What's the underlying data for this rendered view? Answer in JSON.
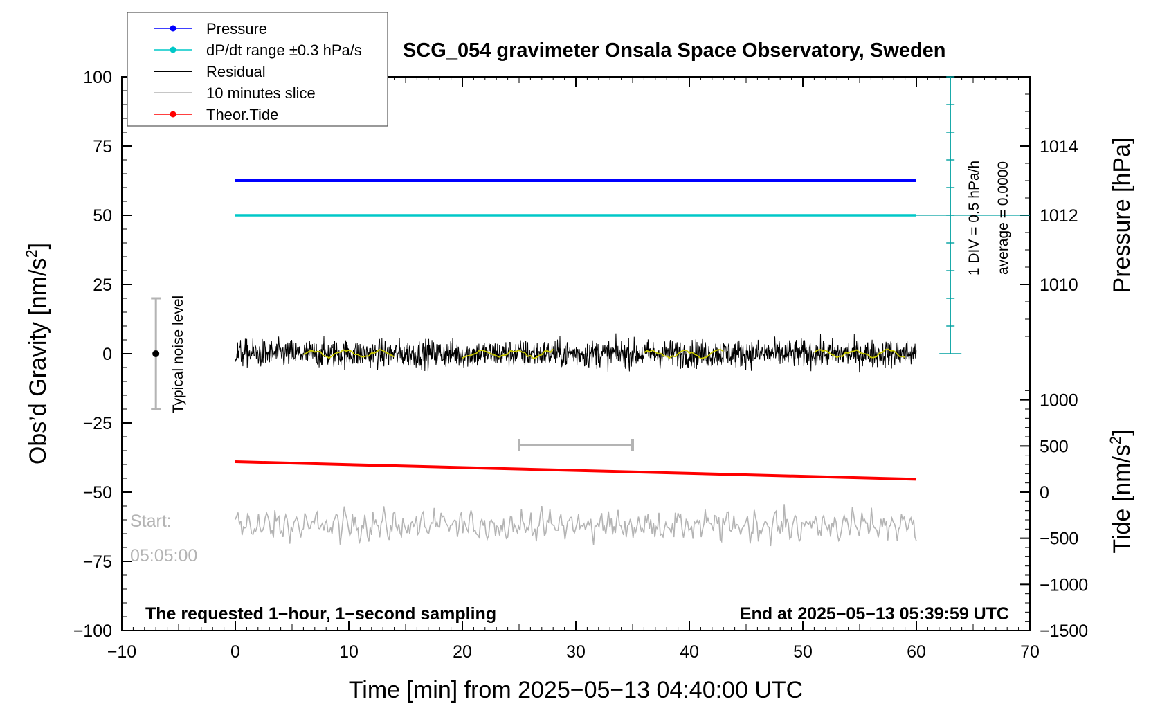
{
  "chart_data": {
    "type": "line",
    "title": "SCG_054 gravimeter Onsala Space Observatory, Sweden",
    "xlabel": "Time [min] from 2025−05−13 04:40:00 UTC",
    "xlim": [
      -10,
      70
    ],
    "x_ticks": [
      -10,
      0,
      10,
      20,
      30,
      40,
      50,
      60,
      70
    ],
    "x_tick_labels": [
      "−10",
      "0",
      "10",
      "20",
      "30",
      "40",
      "50",
      "60",
      "70"
    ],
    "y_left": {
      "label_main": "Obs’d Gravity [nm/s",
      "label_sup": "2",
      "label_end": "]",
      "lim": [
        -100,
        100
      ],
      "ticks": [
        -100,
        -75,
        -50,
        -25,
        0,
        25,
        50,
        75,
        100
      ],
      "tick_labels": [
        "−100",
        "−75",
        "−50",
        "−25",
        "0",
        "25",
        "50",
        "75",
        "100"
      ]
    },
    "y_right_pressure": {
      "label": "Pressure [hPa]",
      "ticks": [
        1010,
        1012,
        1014
      ],
      "tick_labels": [
        "1010",
        "1012",
        "1014"
      ],
      "value_at_left_0": 1008,
      "value_at_left_100": 1016
    },
    "y_right_tide": {
      "label_main": "Tide [nm/s",
      "label_sup": "2",
      "label_end": "]",
      "ticks": [
        -1500,
        -1000,
        -500,
        0,
        500,
        1000
      ],
      "tick_labels": [
        "−1500",
        "−1000",
        "−500",
        "0",
        "500",
        "1000"
      ],
      "value_at_left_minus100": -1500,
      "value_at_left_minus50": 0
    },
    "legend": {
      "placement": "top-left",
      "entries": [
        {
          "label": "Pressure",
          "color": "#0000ff",
          "marker": true
        },
        {
          "label": "dP/dt range ±0.3 hPa/s",
          "color": "#00c8c8",
          "marker": true
        },
        {
          "label": "Residual",
          "color": "#000000",
          "marker": false
        },
        {
          "label": "10 minutes slice",
          "color": "#b4b4b4",
          "marker": false
        },
        {
          "label": "Theor.Tide",
          "color": "#ff0000",
          "marker": true
        }
      ]
    },
    "series": [
      {
        "name": "Pressure",
        "color": "#0000ff",
        "x": [
          0,
          60
        ],
        "y_hpa": [
          1013,
          1013
        ]
      },
      {
        "name": "dP/dt range ±0.3 hPa/s",
        "color": "#00c8c8",
        "x": [
          0,
          60
        ],
        "y_hpa": [
          1012,
          1012
        ]
      },
      {
        "name": "Residual",
        "color": "#000000",
        "x_range": [
          0,
          60
        ],
        "mean": 0,
        "amplitude": 6
      },
      {
        "name": "10 minutes slice",
        "color": "#b4b4b4",
        "x_range": [
          0,
          60
        ],
        "mean": -62,
        "amplitude": 5
      },
      {
        "name": "Theor.Tide",
        "color": "#ff0000",
        "x": [
          0,
          60
        ],
        "y_tide": [
          330,
          140
        ]
      }
    ],
    "dpdt_scale": {
      "x": 63,
      "div_label": "1 DIV = 0.5 hPa/h",
      "avg_label": "average = 0.0000"
    },
    "slice_marker": {
      "x": [
        25,
        35
      ],
      "y": -33
    },
    "noise_bar": {
      "x": -7,
      "y": 0,
      "range": [
        -20,
        20
      ],
      "label": "Typical noise level"
    },
    "start_label": [
      "Start:",
      "05:05:00"
    ],
    "note_left": "The requested 1−hour, 1−second sampling",
    "note_right": "End at 2025−05−13 05:39:59 UTC"
  }
}
